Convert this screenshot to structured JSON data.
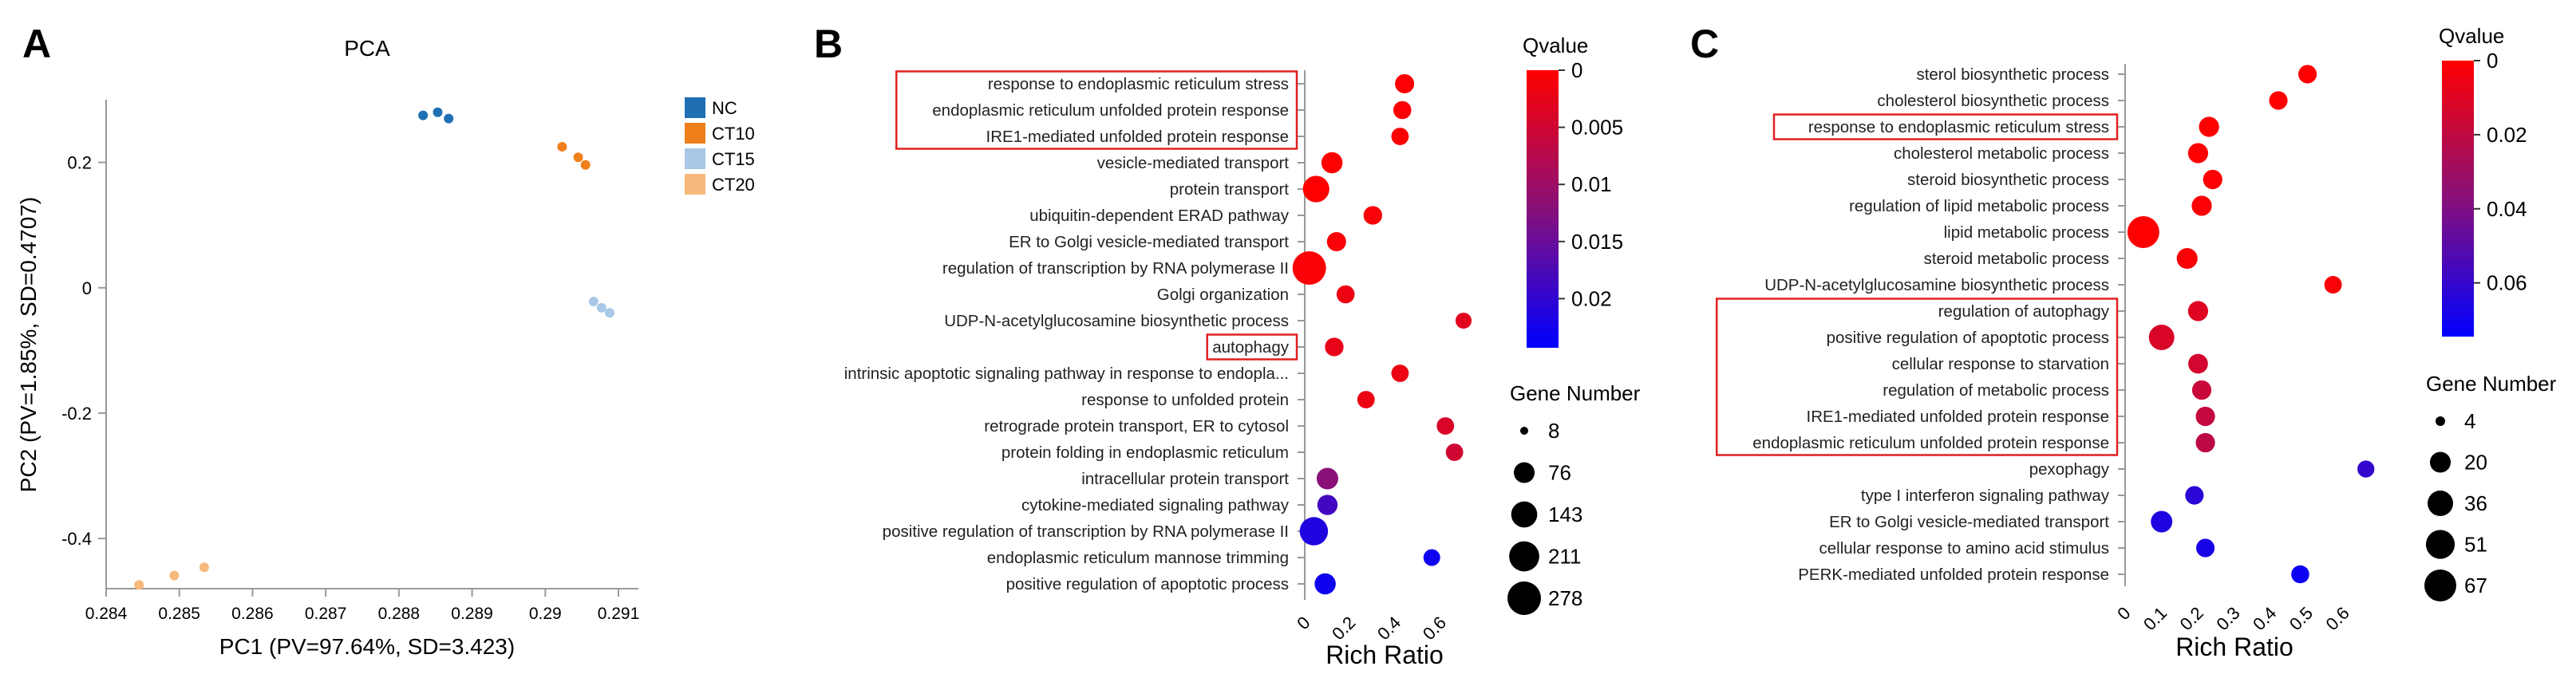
{
  "chart_data": [
    {
      "panel": "A",
      "type": "scatter",
      "title": "PCA",
      "xlabel": "PC1 (PV=97.64%, SD=3.423)",
      "ylabel": "PC2 (PV=1.85%, SD=0.4707)",
      "xlim": [
        0.284,
        0.291
      ],
      "ylim": [
        -0.48,
        0.3
      ],
      "xticks": [
        "0.284",
        "0.285",
        "0.286",
        "0.287",
        "0.288",
        "0.289",
        "0.29",
        "0.291"
      ],
      "yticks": [
        "0.2",
        "0",
        "-0.2",
        "-0.4"
      ],
      "ytick_values": [
        0.2,
        0,
        -0.2,
        -0.4
      ],
      "legend_position": "right",
      "series": [
        {
          "name": "NC",
          "color": "#1f6fb4",
          "points": [
            [
              0.28833,
              0.275
            ],
            [
              0.28853,
              0.28
            ],
            [
              0.28868,
              0.27
            ]
          ]
        },
        {
          "name": "CT10",
          "color": "#ef7f1a",
          "points": [
            [
              0.29023,
              0.225
            ],
            [
              0.29045,
              0.208
            ],
            [
              0.29055,
              0.196
            ]
          ]
        },
        {
          "name": "CT15",
          "color": "#a8c8e6",
          "points": [
            [
              0.29066,
              -0.022
            ],
            [
              0.29077,
              -0.032
            ],
            [
              0.29088,
              -0.04
            ]
          ]
        },
        {
          "name": "CT20",
          "color": "#f7b87c",
          "points": [
            [
              0.28445,
              -0.474
            ],
            [
              0.28493,
              -0.459
            ],
            [
              0.28534,
              -0.446
            ]
          ]
        }
      ]
    },
    {
      "panel": "B",
      "type": "scatter",
      "xlabel": "Rich Ratio",
      "xlim": [
        0,
        0.7
      ],
      "xticks": [
        "0",
        "0.2",
        "0.4",
        "0.6"
      ],
      "xtick_values": [
        0,
        0.2,
        0.4,
        0.6
      ],
      "color_legend": {
        "title": "Qvalue",
        "ticks": [
          "0",
          "0.005",
          "0.01",
          "0.015",
          "0.02"
        ],
        "tick_values": [
          0,
          0.005,
          0.01,
          0.015,
          0.02
        ],
        "max": 0.0243
      },
      "size_legend": {
        "title": "Gene Number",
        "values": [
          8,
          76,
          143,
          211,
          278
        ]
      },
      "size_range": [
        8,
        278
      ],
      "terms": [
        {
          "label": "response to endoplasmic reticulum stress",
          "rich_ratio": 0.44,
          "qvalue": 0.0003,
          "genes": 60,
          "highlight": true
        },
        {
          "label": "endoplasmic reticulum unfolded protein response",
          "rich_ratio": 0.43,
          "qvalue": 0.0003,
          "genes": 50,
          "highlight": true
        },
        {
          "label": "IRE1-mediated unfolded protein response",
          "rich_ratio": 0.42,
          "qvalue": 0.0004,
          "genes": 45,
          "highlight": true
        },
        {
          "label": "vesicle-mediated transport",
          "rich_ratio": 0.12,
          "qvalue": 0.0002,
          "genes": 80,
          "highlight": false
        },
        {
          "label": "protein transport",
          "rich_ratio": 0.05,
          "qvalue": 0.0001,
          "genes": 150,
          "highlight": false
        },
        {
          "label": "ubiquitin-dependent ERAD pathway",
          "rich_ratio": 0.3,
          "qvalue": 0.0007,
          "genes": 55,
          "highlight": false
        },
        {
          "label": "ER to Golgi vesicle-mediated transport",
          "rich_ratio": 0.14,
          "qvalue": 0.0007,
          "genes": 60,
          "highlight": false
        },
        {
          "label": "regulation of transcription by RNA polymerase II",
          "rich_ratio": 0.02,
          "qvalue": 0.0005,
          "genes": 278,
          "highlight": false
        },
        {
          "label": "Golgi organization",
          "rich_ratio": 0.18,
          "qvalue": 0.0018,
          "genes": 50,
          "highlight": false
        },
        {
          "label": "UDP-N-acetylglucosamine biosynthetic process",
          "rich_ratio": 0.7,
          "qvalue": 0.003,
          "genes": 35,
          "highlight": false
        },
        {
          "label": "autophagy",
          "rich_ratio": 0.13,
          "qvalue": 0.0025,
          "genes": 55,
          "highlight": true
        },
        {
          "label": "intrinsic apoptotic signaling pathway in response to endopla...",
          "rich_ratio": 0.42,
          "qvalue": 0.002,
          "genes": 45,
          "highlight": false
        },
        {
          "label": "response to unfolded protein",
          "rich_ratio": 0.27,
          "qvalue": 0.002,
          "genes": 45,
          "highlight": false
        },
        {
          "label": "retrograde protein transport, ER to cytosol",
          "rich_ratio": 0.62,
          "qvalue": 0.004,
          "genes": 45,
          "highlight": false
        },
        {
          "label": "protein folding in endoplasmic reticulum",
          "rich_ratio": 0.66,
          "qvalue": 0.005,
          "genes": 45,
          "highlight": false
        },
        {
          "label": "intracellular protein transport",
          "rich_ratio": 0.1,
          "qvalue": 0.012,
          "genes": 85,
          "highlight": false
        },
        {
          "label": "cytokine-mediated signaling pathway",
          "rich_ratio": 0.1,
          "qvalue": 0.0185,
          "genes": 70,
          "highlight": false
        },
        {
          "label": "positive regulation of transcription by RNA polymerase II",
          "rich_ratio": 0.04,
          "qvalue": 0.0215,
          "genes": 180,
          "highlight": false
        },
        {
          "label": "endoplasmic reticulum mannose trimming",
          "rich_ratio": 0.56,
          "qvalue": 0.023,
          "genes": 40,
          "highlight": false
        },
        {
          "label": "positive regulation of apoptotic process",
          "rich_ratio": 0.09,
          "qvalue": 0.023,
          "genes": 80,
          "highlight": false
        }
      ]
    },
    {
      "panel": "C",
      "type": "scatter",
      "xlabel": "Rich Ratio",
      "xlim": [
        0,
        0.7
      ],
      "xticks": [
        "0",
        "0.1",
        "0.2",
        "0.3",
        "0.4",
        "0.5",
        "0.6"
      ],
      "xtick_values": [
        0,
        0.1,
        0.2,
        0.3,
        0.4,
        0.5,
        0.6
      ],
      "color_legend": {
        "title": "Qvalue",
        "ticks": [
          "0",
          "0.02",
          "0.04",
          "0.06"
        ],
        "tick_values": [
          0,
          0.02,
          0.04,
          0.06
        ],
        "max": 0.0745
      },
      "size_legend": {
        "title": "Gene Number",
        "values": [
          4,
          20,
          36,
          51,
          67
        ]
      },
      "size_range": [
        4,
        67
      ],
      "terms": [
        {
          "label": "sterol biosynthetic process",
          "rich_ratio": 0.5,
          "qvalue": 0.0003,
          "genes": 14,
          "highlight": false
        },
        {
          "label": "cholesterol biosynthetic process",
          "rich_ratio": 0.42,
          "qvalue": 0.0003,
          "genes": 14,
          "highlight": false
        },
        {
          "label": "response to endoplasmic reticulum stress",
          "rich_ratio": 0.23,
          "qvalue": 0.0005,
          "genes": 18,
          "highlight": true
        },
        {
          "label": "cholesterol metabolic process",
          "rich_ratio": 0.2,
          "qvalue": 0.0007,
          "genes": 18,
          "highlight": false
        },
        {
          "label": "steroid biosynthetic process",
          "rich_ratio": 0.24,
          "qvalue": 0.0009,
          "genes": 16,
          "highlight": false
        },
        {
          "label": "regulation of lipid metabolic process",
          "rich_ratio": 0.21,
          "qvalue": 0.0011,
          "genes": 18,
          "highlight": false
        },
        {
          "label": "lipid metabolic process",
          "rich_ratio": 0.05,
          "qvalue": 0.0002,
          "genes": 67,
          "highlight": false
        },
        {
          "label": "steroid metabolic process",
          "rich_ratio": 0.17,
          "qvalue": 0.0016,
          "genes": 20,
          "highlight": false
        },
        {
          "label": "UDP-N-acetylglucosamine biosynthetic process",
          "rich_ratio": 0.57,
          "qvalue": 0.0022,
          "genes": 12,
          "highlight": false
        },
        {
          "label": "regulation of autophagy",
          "rich_ratio": 0.2,
          "qvalue": 0.01,
          "genes": 18,
          "highlight": true
        },
        {
          "label": "positive regulation of apoptotic process",
          "rich_ratio": 0.1,
          "qvalue": 0.012,
          "genes": 36,
          "highlight": true
        },
        {
          "label": "cellular response to starvation",
          "rich_ratio": 0.2,
          "qvalue": 0.014,
          "genes": 17,
          "highlight": true
        },
        {
          "label": "regulation of metabolic process",
          "rich_ratio": 0.21,
          "qvalue": 0.017,
          "genes": 16,
          "highlight": true
        },
        {
          "label": "IRE1-mediated unfolded protein response",
          "rich_ratio": 0.22,
          "qvalue": 0.019,
          "genes": 16,
          "highlight": true
        },
        {
          "label": "endoplasmic reticulum unfolded protein response",
          "rich_ratio": 0.22,
          "qvalue": 0.021,
          "genes": 16,
          "highlight": true
        },
        {
          "label": "pexophagy",
          "rich_ratio": 0.66,
          "qvalue": 0.06,
          "genes": 11,
          "highlight": false
        },
        {
          "label": "type I interferon signaling pathway",
          "rich_ratio": 0.19,
          "qvalue": 0.063,
          "genes": 14,
          "highlight": false
        },
        {
          "label": "ER to Golgi vesicle-mediated transport",
          "rich_ratio": 0.1,
          "qvalue": 0.066,
          "genes": 22,
          "highlight": false
        },
        {
          "label": "cellular response to amino acid stimulus",
          "rich_ratio": 0.22,
          "qvalue": 0.068,
          "genes": 14,
          "highlight": false
        },
        {
          "label": "PERK-mediated unfolded protein response",
          "rich_ratio": 0.48,
          "qvalue": 0.071,
          "genes": 13,
          "highlight": false
        }
      ]
    }
  ],
  "panel_labels": {
    "a": "A",
    "b": "B",
    "c": "C"
  },
  "colors": {
    "low": "#ff0000",
    "high": "#0000ff",
    "highlight_box": "#e02020"
  }
}
